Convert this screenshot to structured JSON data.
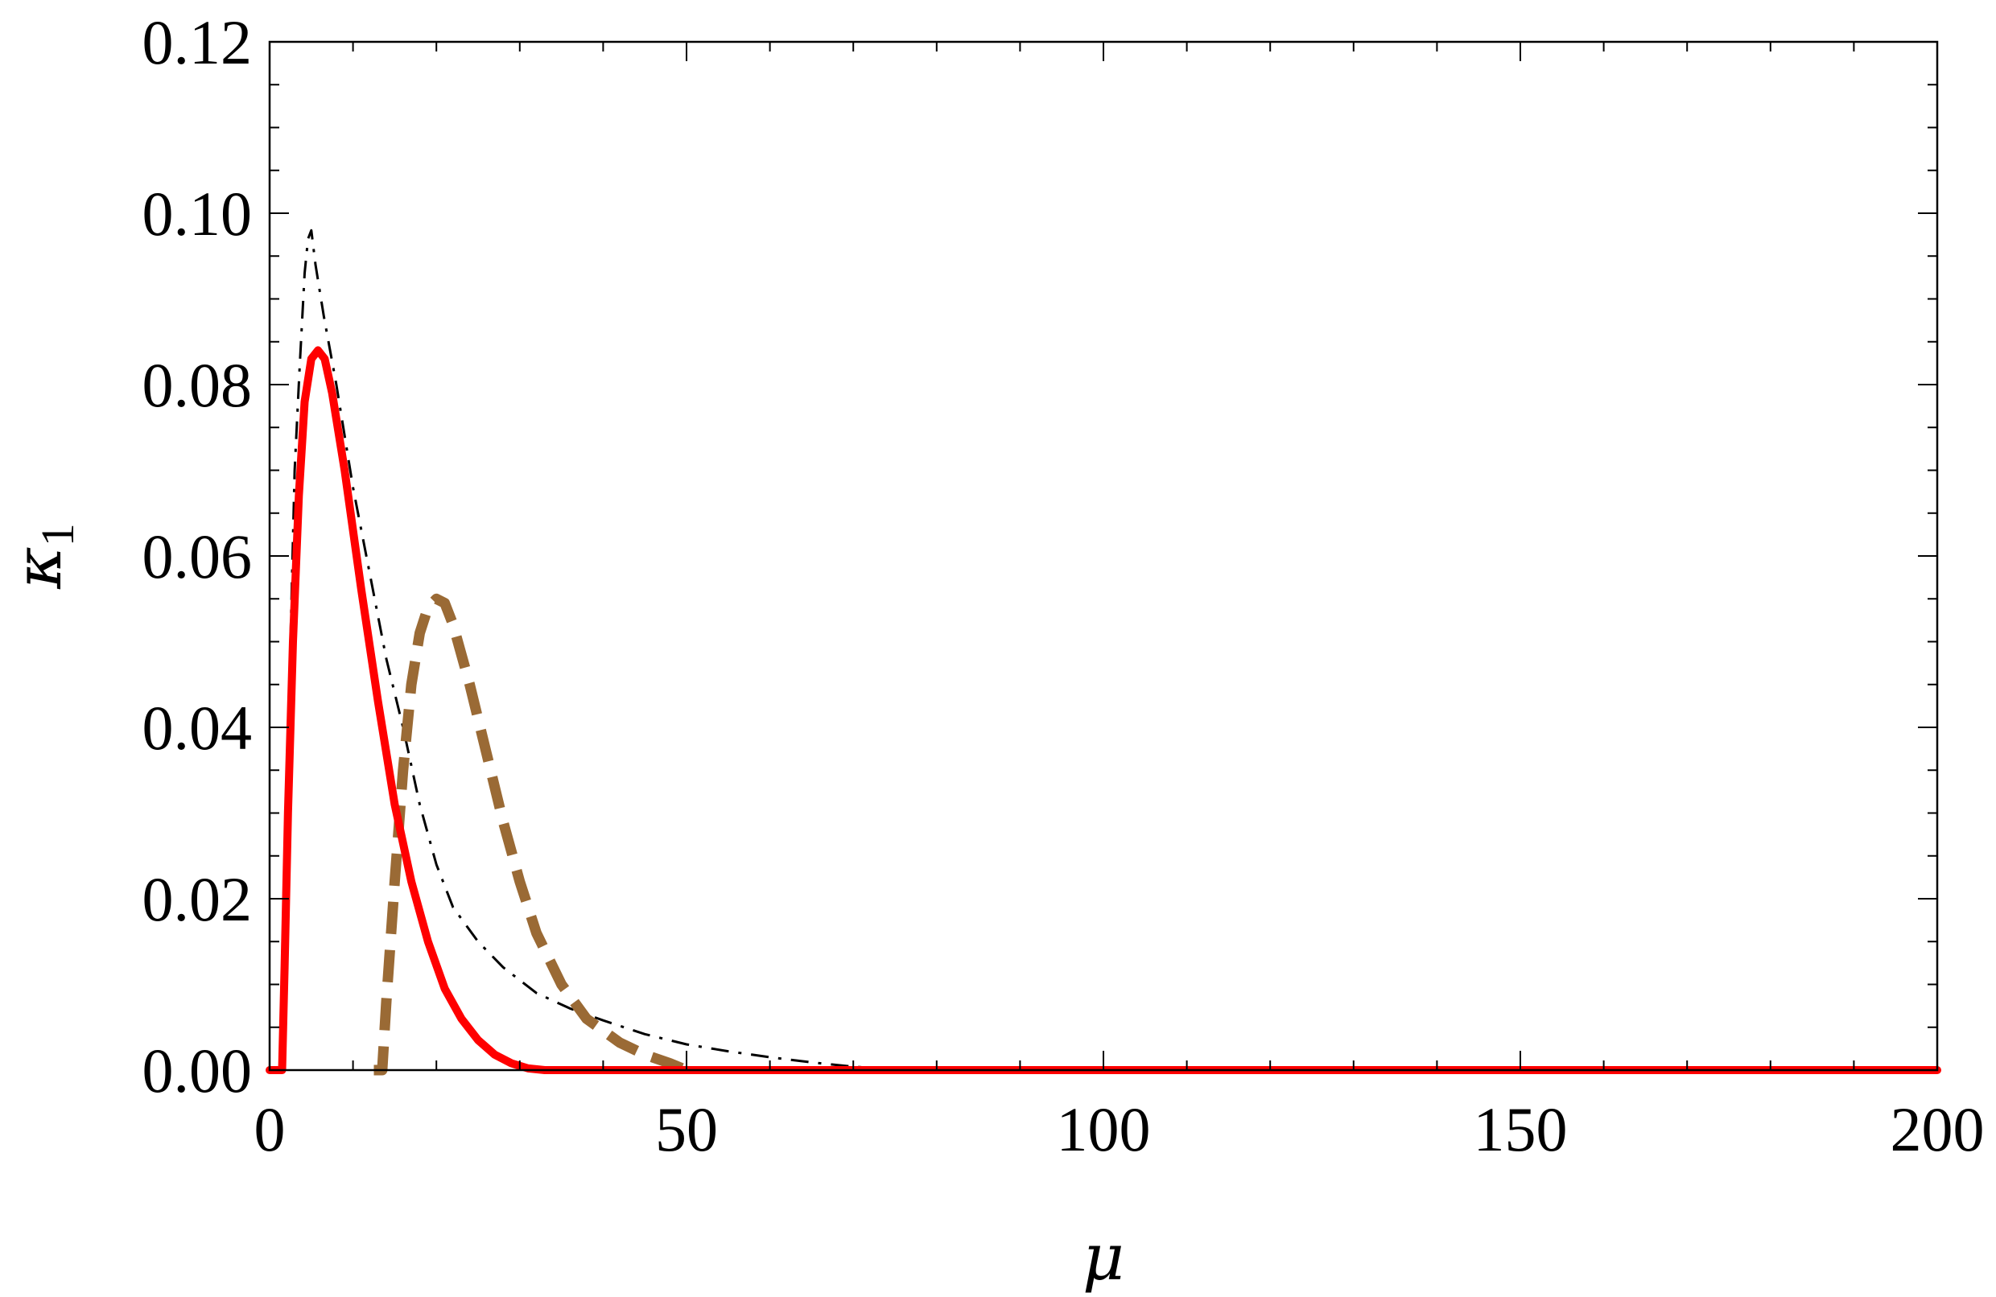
{
  "chart_data": {
    "type": "line",
    "title": "",
    "xlabel": "μ",
    "ylabel": {
      "main": "κ",
      "sub": "1"
    },
    "xlim": [
      0,
      200
    ],
    "ylim": [
      0,
      0.12
    ],
    "x_ticks": [
      0,
      50,
      100,
      150,
      200
    ],
    "x_tick_labels": [
      "0",
      "50",
      "100",
      "150",
      "200"
    ],
    "y_ticks": [
      0,
      0.02,
      0.04,
      0.06,
      0.08,
      0.1,
      0.12
    ],
    "y_tick_labels": [
      "0.00",
      "0.02",
      "0.04",
      "0.06",
      "0.08",
      "0.10",
      "0.12"
    ],
    "grid": false,
    "series": [
      {
        "style": "dash-dot",
        "color": "#000000",
        "points": [
          [
            0,
            0
          ],
          [
            1.5,
            0
          ],
          [
            2,
            0.03
          ],
          [
            3,
            0.07
          ],
          [
            3.6,
            0.082
          ],
          [
            4.2,
            0.093
          ],
          [
            4.6,
            0.097
          ],
          [
            5,
            0.098
          ],
          [
            5.5,
            0.094
          ],
          [
            6.5,
            0.088
          ],
          [
            8,
            0.08
          ],
          [
            10,
            0.068
          ],
          [
            12,
            0.058
          ],
          [
            14,
            0.048
          ],
          [
            16,
            0.04
          ],
          [
            18,
            0.031
          ],
          [
            20,
            0.024
          ],
          [
            22,
            0.019
          ],
          [
            25,
            0.015
          ],
          [
            28,
            0.012
          ],
          [
            32,
            0.009
          ],
          [
            36,
            0.0072
          ],
          [
            40,
            0.0058
          ],
          [
            45,
            0.0042
          ],
          [
            50,
            0.003
          ],
          [
            55,
            0.0022
          ],
          [
            60,
            0.0015
          ],
          [
            65,
            0.0009
          ],
          [
            70,
            0.0004
          ],
          [
            75,
            0.0001
          ],
          [
            80,
            0
          ],
          [
            200,
            0
          ]
        ]
      },
      {
        "style": "dashed",
        "color": "#9a6a35",
        "points": [
          [
            12.5,
            0
          ],
          [
            13.5,
            0
          ],
          [
            14,
            0.008
          ],
          [
            15,
            0.022
          ],
          [
            16,
            0.035
          ],
          [
            17,
            0.045
          ],
          [
            18,
            0.051
          ],
          [
            19,
            0.054
          ],
          [
            20,
            0.055
          ],
          [
            21,
            0.0545
          ],
          [
            22,
            0.052
          ],
          [
            24,
            0.045
          ],
          [
            26,
            0.037
          ],
          [
            28,
            0.029
          ],
          [
            30,
            0.022
          ],
          [
            32,
            0.016
          ],
          [
            35,
            0.01
          ],
          [
            38,
            0.006
          ],
          [
            42,
            0.0032
          ],
          [
            45,
            0.0018
          ],
          [
            48,
            0.0008
          ],
          [
            50,
            0
          ]
        ]
      },
      {
        "style": "solid",
        "color": "#ff0000",
        "points": [
          [
            0,
            0
          ],
          [
            1.5,
            0
          ],
          [
            1.8,
            0.012
          ],
          [
            2.2,
            0.03
          ],
          [
            2.8,
            0.05
          ],
          [
            3.5,
            0.067
          ],
          [
            4.2,
            0.078
          ],
          [
            5,
            0.083
          ],
          [
            5.8,
            0.084
          ],
          [
            6.6,
            0.083
          ],
          [
            7.5,
            0.079
          ],
          [
            9,
            0.07
          ],
          [
            11,
            0.056
          ],
          [
            13,
            0.043
          ],
          [
            15,
            0.031
          ],
          [
            17,
            0.022
          ],
          [
            19,
            0.015
          ],
          [
            21,
            0.0095
          ],
          [
            23,
            0.006
          ],
          [
            25,
            0.0035
          ],
          [
            27,
            0.0018
          ],
          [
            29,
            0.0008
          ],
          [
            31,
            0.0002
          ],
          [
            33,
            0
          ],
          [
            200,
            0
          ]
        ]
      }
    ]
  }
}
